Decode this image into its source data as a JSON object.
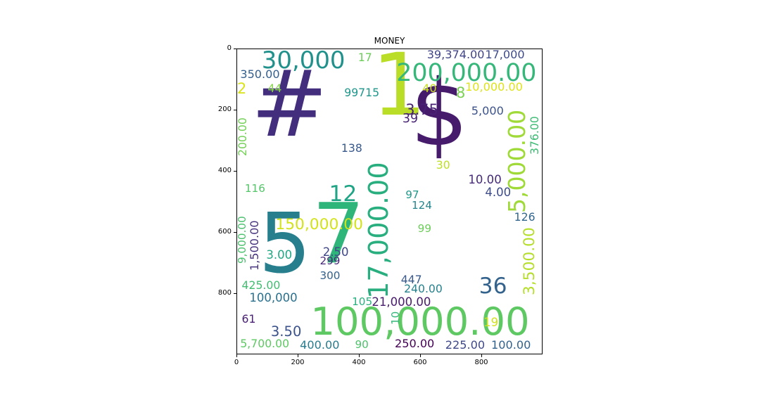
{
  "chart_data": {
    "type": "wordcloud",
    "title": "MONEY",
    "xlim": [
      0,
      1000
    ],
    "ylim": [
      1000,
      0
    ],
    "xticks": [
      "0",
      "200",
      "400",
      "600",
      "800"
    ],
    "yticks": [
      "0",
      "200",
      "400",
      "600",
      "800"
    ],
    "words": [
      {
        "text": "$",
        "color": "#471b6b"
      },
      {
        "text": "#",
        "color": "#432e7d"
      },
      {
        "text": "5",
        "color": "#277f8e"
      },
      {
        "text": "7",
        "color": "#2db57a"
      },
      {
        "text": "1",
        "color": "#bade28"
      },
      {
        "text": "100,000.00",
        "color": "#5ec962"
      },
      {
        "text": "17,000.00",
        "color": "#29af7f"
      },
      {
        "text": "200,000.00",
        "color": "#35b779"
      },
      {
        "text": "30,000",
        "color": "#21918c"
      },
      {
        "text": "5,000.00",
        "color": "#a0da39"
      },
      {
        "text": "150,000.00",
        "color": "#d2e21b"
      },
      {
        "text": "3,500.00",
        "color": "#b5de2b"
      },
      {
        "text": "36",
        "color": "#33638d"
      },
      {
        "text": "12",
        "color": "#20a486"
      },
      {
        "text": "39,374.00",
        "color": "#414487"
      },
      {
        "text": "17,000",
        "color": "#3e4a89"
      },
      {
        "text": "10,000.00",
        "color": "#dde318"
      },
      {
        "text": "3.75",
        "color": "#482374"
      },
      {
        "text": "39",
        "color": "#482475"
      },
      {
        "text": "5,000",
        "color": "#3b528b"
      },
      {
        "text": "8",
        "color": "#7ad151"
      },
      {
        "text": "40",
        "color": "#c8e020"
      },
      {
        "text": "17",
        "color": "#6ccd5a"
      },
      {
        "text": "350.00",
        "color": "#355f8d"
      },
      {
        "text": "2",
        "color": "#d8e219"
      },
      {
        "text": "44",
        "color": "#86d549"
      },
      {
        "text": "99715",
        "color": "#1f968b"
      },
      {
        "text": "200.00",
        "color": "#73d056"
      },
      {
        "text": "138",
        "color": "#38598c"
      },
      {
        "text": "376.00",
        "color": "#3dbc74"
      },
      {
        "text": "30",
        "color": "#bddf26"
      },
      {
        "text": "10.00",
        "color": "#472c7a"
      },
      {
        "text": "4.00",
        "color": "#3e4c8a"
      },
      {
        "text": "116",
        "color": "#54c568"
      },
      {
        "text": "97",
        "color": "#1f9a8a"
      },
      {
        "text": "124",
        "color": "#25858e"
      },
      {
        "text": "126",
        "color": "#31668e"
      },
      {
        "text": "99",
        "color": "#6ccd5a"
      },
      {
        "text": "9,000.00",
        "color": "#4ac16d"
      },
      {
        "text": "1,500.00",
        "color": "#46327e"
      },
      {
        "text": "3.00",
        "color": "#22a884"
      },
      {
        "text": "2.50",
        "color": "#3f4788"
      },
      {
        "text": "299",
        "color": "#482979"
      },
      {
        "text": "300",
        "color": "#34618d"
      },
      {
        "text": "447",
        "color": "#38598c"
      },
      {
        "text": "240.00",
        "color": "#26828e"
      },
      {
        "text": "425.00",
        "color": "#42be71"
      },
      {
        "text": "100,000",
        "color": "#2c728e"
      },
      {
        "text": "105",
        "color": "#2ab07f"
      },
      {
        "text": "21,000.00",
        "color": "#481c6e"
      },
      {
        "text": "10",
        "color": "#35b779"
      },
      {
        "text": "19",
        "color": "#d0e11c"
      },
      {
        "text": "61",
        "color": "#482173"
      },
      {
        "text": "3.50",
        "color": "#3b528b"
      },
      {
        "text": "5,700.00",
        "color": "#5ec962"
      },
      {
        "text": "400.00",
        "color": "#287c8e"
      },
      {
        "text": "90",
        "color": "#4ec36b"
      },
      {
        "text": "250.00",
        "color": "#440154"
      },
      {
        "text": "225.00",
        "color": "#3f4889"
      },
      {
        "text": "100.00",
        "color": "#33628d"
      }
    ]
  }
}
